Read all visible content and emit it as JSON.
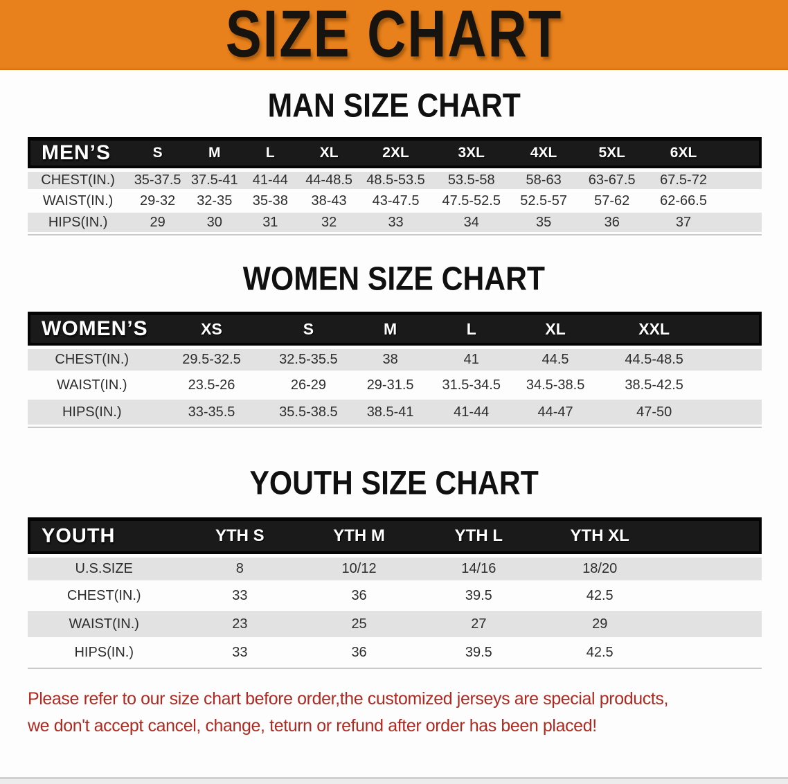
{
  "banner": {
    "title": "SIZE CHART",
    "background_color": "#E8811B",
    "text_color": "#17130E"
  },
  "sections": {
    "men": {
      "heading": "MAN SIZE CHART"
    },
    "women": {
      "heading": "WOMEN SIZE CHART"
    },
    "youth": {
      "heading": "YOUTH SIZE CHART"
    }
  },
  "tables": {
    "men": {
      "label": "MEN’S",
      "columns": [
        "S",
        "M",
        "L",
        "XL",
        "2XL",
        "3XL",
        "4XL",
        "5XL",
        "6XL"
      ],
      "rows": [
        {
          "label": "CHEST(IN.)",
          "values": [
            "35-37.5",
            "37.5-41",
            "41-44",
            "44-48.5",
            "48.5-53.5",
            "53.5-58",
            "58-63",
            "63-67.5",
            "67.5-72"
          ]
        },
        {
          "label": "WAIST(IN.)",
          "values": [
            "29-32",
            "32-35",
            "35-38",
            "38-43",
            "43-47.5",
            "47.5-52.5",
            "52.5-57",
            "57-62",
            "62-66.5"
          ]
        },
        {
          "label": "HIPS(IN.)",
          "values": [
            "29",
            "30",
            "31",
            "32",
            "33",
            "34",
            "35",
            "36",
            "37"
          ]
        }
      ]
    },
    "women": {
      "label": "WOMEN’S",
      "columns": [
        "XS",
        "S",
        "M",
        "L",
        "XL",
        "XXL"
      ],
      "rows": [
        {
          "label": "CHEST(IN.)",
          "values": [
            "29.5-32.5",
            "32.5-35.5",
            "38",
            "41",
            "44.5",
            "44.5-48.5"
          ]
        },
        {
          "label": "WAIST(IN.)",
          "values": [
            "23.5-26",
            "26-29",
            "29-31.5",
            "31.5-34.5",
            "34.5-38.5",
            "38.5-42.5"
          ]
        },
        {
          "label": "HIPS(IN.)",
          "values": [
            "33-35.5",
            "35.5-38.5",
            "38.5-41",
            "41-44",
            "44-47",
            "47-50"
          ]
        }
      ]
    },
    "youth": {
      "label": "YOUTH",
      "columns": [
        "YTH S",
        "YTH M",
        "YTH L",
        "YTH XL"
      ],
      "rows": [
        {
          "label": "U.S.SIZE",
          "values": [
            "8",
            "10/12",
            "14/16",
            "18/20"
          ]
        },
        {
          "label": "CHEST(IN.)",
          "values": [
            "33",
            "36",
            "39.5",
            "42.5"
          ]
        },
        {
          "label": "WAIST(IN.)",
          "values": [
            "23",
            "25",
            "27",
            "29"
          ]
        },
        {
          "label": "HIPS(IN.)",
          "values": [
            "33",
            "36",
            "39.5",
            "42.5"
          ]
        }
      ]
    }
  },
  "style_tokens": {
    "header_bar_color": "#1A1A1A",
    "row_gray_color": "#E2E2E2",
    "note_color": "#AE2A21"
  },
  "footer_note": {
    "line1": "Please refer to our size chart before order,the customized jerseys are special products,",
    "line2": "we don't accept cancel, change, teturn or refund after order has been placed!"
  }
}
